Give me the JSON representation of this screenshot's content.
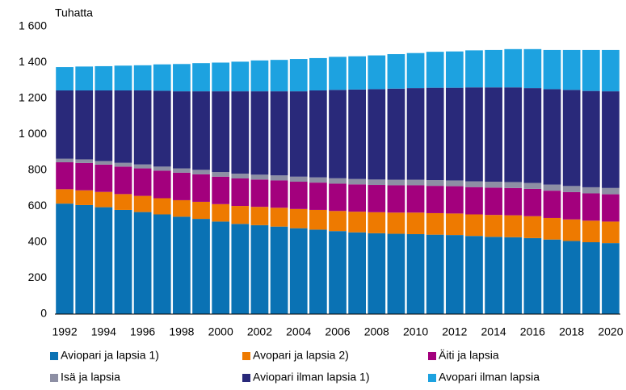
{
  "chart_data": {
    "type": "stacked_bar",
    "y_axis_label": "Tuhatta",
    "categories": [
      "1992",
      null,
      "1994",
      null,
      "1996",
      null,
      "1998",
      null,
      "2000",
      null,
      "2002",
      null,
      "2004",
      null,
      "2006",
      null,
      "2008",
      null,
      "2010",
      null,
      "2012",
      null,
      "2014",
      null,
      "2016",
      null,
      "2018",
      null,
      "2020"
    ],
    "series": [
      {
        "name": "Aviopari ja lapsia 1)",
        "color": "#0a72b4",
        "values": [
          615,
          607,
          595,
          580,
          568,
          555,
          542,
          530,
          515,
          502,
          495,
          487,
          478,
          470,
          462,
          455,
          450,
          447,
          445,
          442,
          440,
          435,
          430,
          428,
          423,
          415,
          407,
          400,
          395
        ]
      },
      {
        "name": "Avopari ja lapsia 2)",
        "color": "#ee7a00",
        "values": [
          80,
          82,
          85,
          88,
          90,
          90,
          92,
          95,
          97,
          100,
          102,
          105,
          107,
          110,
          112,
          115,
          117,
          118,
          120,
          120,
          120,
          120,
          122,
          122,
          122,
          120,
          120,
          120,
          120
        ]
      },
      {
        "name": "Äiti ja lapsia",
        "color": "#a3007d",
        "values": [
          150,
          152,
          152,
          153,
          153,
          153,
          153,
          153,
          153,
          153,
          152,
          152,
          152,
          152,
          152,
          152,
          152,
          152,
          152,
          152,
          152,
          152,
          152,
          152,
          152,
          152,
          152,
          152,
          152
        ]
      },
      {
        "name": "Isä ja lapsia",
        "color": "#8d8fa4",
        "values": [
          20,
          20,
          20,
          21,
          22,
          23,
          24,
          25,
          26,
          27,
          27,
          28,
          28,
          29,
          30,
          30,
          30,
          31,
          31,
          32,
          32,
          32,
          33,
          33,
          33,
          34,
          34,
          34,
          35
        ]
      },
      {
        "name": "Aviopari ilman lapsia 1)",
        "color": "#29297a",
        "values": [
          380,
          384,
          393,
          403,
          412,
          422,
          429,
          437,
          449,
          458,
          464,
          468,
          475,
          484,
          492,
          498,
          503,
          507,
          510,
          514,
          516,
          523,
          525,
          527,
          528,
          531,
          535,
          536,
          538
        ]
      },
      {
        "name": "Avopari ilman lapsia",
        "color": "#1da2e0",
        "values": [
          130,
          133,
          135,
          138,
          140,
          147,
          152,
          157,
          160,
          165,
          172,
          175,
          180,
          180,
          184,
          185,
          188,
          192,
          195,
          200,
          202,
          206,
          208,
          213,
          217,
          218,
          222,
          228,
          230
        ]
      }
    ],
    "ylim": [
      0,
      1600
    ],
    "yticks": [
      0,
      200,
      400,
      600,
      800,
      {
        "value": 1000,
        "label": "1 000"
      },
      {
        "value": 1200,
        "label": "1 200"
      },
      {
        "value": 1400,
        "label": "1 400"
      },
      {
        "value": 1600,
        "label": "1 600"
      }
    ],
    "grid": false
  }
}
